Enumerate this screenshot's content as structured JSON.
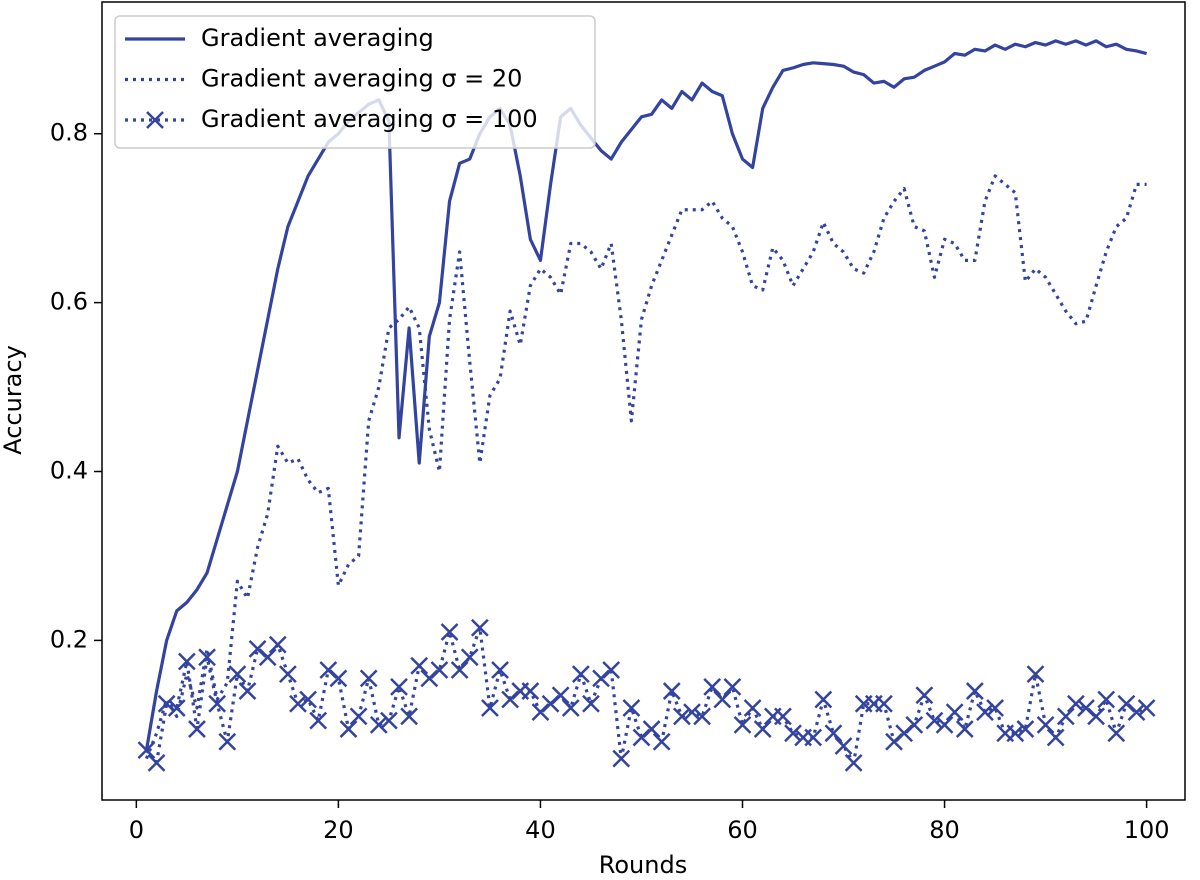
{
  "chart_data": {
    "type": "line",
    "x_label": "Rounds",
    "y_label": "Accuracy",
    "x": [
      1,
      2,
      3,
      4,
      5,
      6,
      7,
      8,
      9,
      10,
      11,
      12,
      13,
      14,
      15,
      16,
      17,
      18,
      19,
      20,
      21,
      22,
      23,
      24,
      25,
      26,
      27,
      28,
      29,
      30,
      31,
      32,
      33,
      34,
      35,
      36,
      37,
      38,
      39,
      40,
      41,
      42,
      43,
      44,
      45,
      46,
      47,
      48,
      49,
      50,
      51,
      52,
      53,
      54,
      55,
      56,
      57,
      58,
      59,
      60,
      61,
      62,
      63,
      64,
      65,
      66,
      67,
      68,
      69,
      70,
      71,
      72,
      73,
      74,
      75,
      76,
      77,
      78,
      79,
      80,
      81,
      82,
      83,
      84,
      85,
      86,
      87,
      88,
      89,
      90,
      91,
      92,
      93,
      94,
      95,
      96,
      97,
      98,
      99,
      100
    ],
    "series": [
      {
        "name": "Gradient averaging",
        "color": "#3343a0",
        "linestyle": "solid",
        "marker": "none",
        "values": [
          0.07,
          0.14,
          0.2,
          0.235,
          0.245,
          0.26,
          0.28,
          0.32,
          0.36,
          0.4,
          0.46,
          0.52,
          0.58,
          0.64,
          0.69,
          0.72,
          0.75,
          0.77,
          0.79,
          0.8,
          0.815,
          0.825,
          0.835,
          0.84,
          0.815,
          0.44,
          0.57,
          0.41,
          0.56,
          0.6,
          0.72,
          0.765,
          0.77,
          0.8,
          0.82,
          0.83,
          0.81,
          0.75,
          0.675,
          0.65,
          0.74,
          0.82,
          0.83,
          0.81,
          0.795,
          0.78,
          0.77,
          0.79,
          0.805,
          0.82,
          0.823,
          0.84,
          0.83,
          0.85,
          0.84,
          0.86,
          0.85,
          0.845,
          0.8,
          0.77,
          0.76,
          0.83,
          0.855,
          0.875,
          0.878,
          0.882,
          0.884,
          0.883,
          0.882,
          0.88,
          0.873,
          0.87,
          0.86,
          0.862,
          0.855,
          0.865,
          0.867,
          0.875,
          0.88,
          0.885,
          0.895,
          0.893,
          0.9,
          0.898,
          0.905,
          0.9,
          0.906,
          0.903,
          0.908,
          0.905,
          0.91,
          0.906,
          0.91,
          0.905,
          0.91,
          0.903,
          0.906,
          0.9,
          0.898,
          0.895
        ]
      },
      {
        "name": "Gradient averaging σ = 20",
        "color": "#3343a0",
        "linestyle": "dotted",
        "marker": "none",
        "values": [
          0.06,
          0.09,
          0.13,
          0.11,
          0.16,
          0.12,
          0.19,
          0.13,
          0.15,
          0.27,
          0.25,
          0.31,
          0.35,
          0.43,
          0.41,
          0.415,
          0.39,
          0.375,
          0.38,
          0.265,
          0.29,
          0.3,
          0.46,
          0.5,
          0.57,
          0.58,
          0.595,
          0.57,
          0.45,
          0.4,
          0.58,
          0.66,
          0.53,
          0.41,
          0.49,
          0.51,
          0.59,
          0.55,
          0.62,
          0.64,
          0.63,
          0.61,
          0.67,
          0.67,
          0.66,
          0.64,
          0.67,
          0.58,
          0.46,
          0.58,
          0.62,
          0.65,
          0.68,
          0.71,
          0.71,
          0.71,
          0.72,
          0.7,
          0.69,
          0.66,
          0.62,
          0.615,
          0.665,
          0.65,
          0.62,
          0.64,
          0.66,
          0.695,
          0.67,
          0.66,
          0.64,
          0.635,
          0.66,
          0.7,
          0.72,
          0.735,
          0.69,
          0.685,
          0.63,
          0.675,
          0.67,
          0.65,
          0.65,
          0.72,
          0.75,
          0.74,
          0.73,
          0.625,
          0.64,
          0.63,
          0.61,
          0.59,
          0.575,
          0.578,
          0.62,
          0.66,
          0.69,
          0.7,
          0.74,
          0.74
        ]
      },
      {
        "name": "Gradient averaging σ = 100",
        "color": "#3343a0",
        "linestyle": "dotted",
        "marker": "x",
        "values": [
          0.07,
          0.055,
          0.125,
          0.12,
          0.175,
          0.095,
          0.18,
          0.125,
          0.08,
          0.16,
          0.14,
          0.19,
          0.18,
          0.195,
          0.16,
          0.125,
          0.13,
          0.105,
          0.165,
          0.155,
          0.095,
          0.11,
          0.155,
          0.1,
          0.105,
          0.145,
          0.11,
          0.17,
          0.155,
          0.165,
          0.21,
          0.165,
          0.18,
          0.215,
          0.12,
          0.165,
          0.13,
          0.14,
          0.14,
          0.115,
          0.125,
          0.135,
          0.12,
          0.16,
          0.125,
          0.155,
          0.165,
          0.06,
          0.12,
          0.085,
          0.095,
          0.08,
          0.14,
          0.11,
          0.115,
          0.11,
          0.145,
          0.13,
          0.145,
          0.1,
          0.12,
          0.095,
          0.11,
          0.11,
          0.09,
          0.085,
          0.085,
          0.13,
          0.09,
          0.075,
          0.055,
          0.125,
          0.125,
          0.125,
          0.08,
          0.09,
          0.1,
          0.135,
          0.105,
          0.1,
          0.115,
          0.095,
          0.14,
          0.115,
          0.12,
          0.09,
          0.09,
          0.095,
          0.16,
          0.1,
          0.085,
          0.11,
          0.125,
          0.12,
          0.11,
          0.13,
          0.09,
          0.125,
          0.115,
          0.12
        ]
      }
    ],
    "xlim": [
      -3.4,
      103.8
    ],
    "ylim": [
      0.011,
      0.956
    ],
    "xticks": [
      0,
      20,
      40,
      60,
      80,
      100
    ],
    "yticks": [
      0.2,
      0.4,
      0.6,
      0.8
    ],
    "legend": "upper left",
    "grid": false
  }
}
